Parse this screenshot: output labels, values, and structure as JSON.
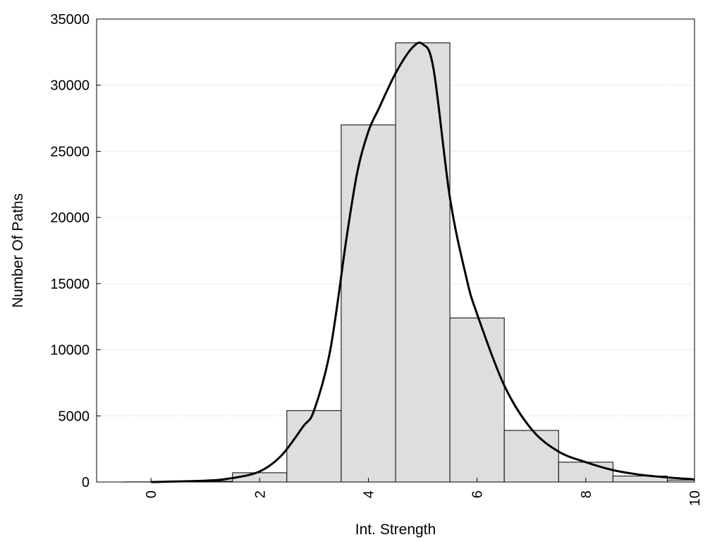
{
  "chart_data": {
    "type": "bar",
    "title": "",
    "xlabel": "Int. Strength",
    "ylabel": "Number Of Paths",
    "xlim": [
      -1,
      10
    ],
    "ylim": [
      0,
      35000
    ],
    "xticks": [
      0,
      2,
      4,
      6,
      8,
      10
    ],
    "yticks": [
      0,
      5000,
      10000,
      15000,
      20000,
      25000,
      30000,
      35000
    ],
    "grid": "horizontal dotted",
    "legend": "none",
    "bar_color": "#dedede",
    "curve_color": "#000000",
    "bars": [
      {
        "x": 0,
        "value": 10
      },
      {
        "x": 1,
        "value": 60
      },
      {
        "x": 2,
        "value": 700
      },
      {
        "x": 3,
        "value": 5400
      },
      {
        "x": 4,
        "value": 27000
      },
      {
        "x": 5,
        "value": 33200
      },
      {
        "x": 6,
        "value": 12400
      },
      {
        "x": 7,
        "value": 3900
      },
      {
        "x": 8,
        "value": 1500
      },
      {
        "x": 9,
        "value": 450
      },
      {
        "x": 10,
        "value": 150
      }
    ],
    "curve": {
      "x": [
        0,
        1,
        1.5,
        2,
        2.4,
        2.8,
        3.0,
        3.3,
        3.6,
        3.8,
        4.0,
        4.2,
        4.5,
        4.8,
        5.0,
        5.2,
        5.5,
        5.8,
        6.0,
        6.5,
        7.0,
        7.5,
        8.0,
        8.5,
        9.0,
        9.5,
        10.0
      ],
      "y": [
        0,
        100,
        300,
        800,
        2000,
        4200,
        5400,
        10000,
        18500,
        23500,
        26500,
        28300,
        30900,
        32800,
        33100,
        31200,
        21500,
        15500,
        12700,
        7300,
        4000,
        2300,
        1500,
        900,
        550,
        350,
        200
      ]
    }
  }
}
